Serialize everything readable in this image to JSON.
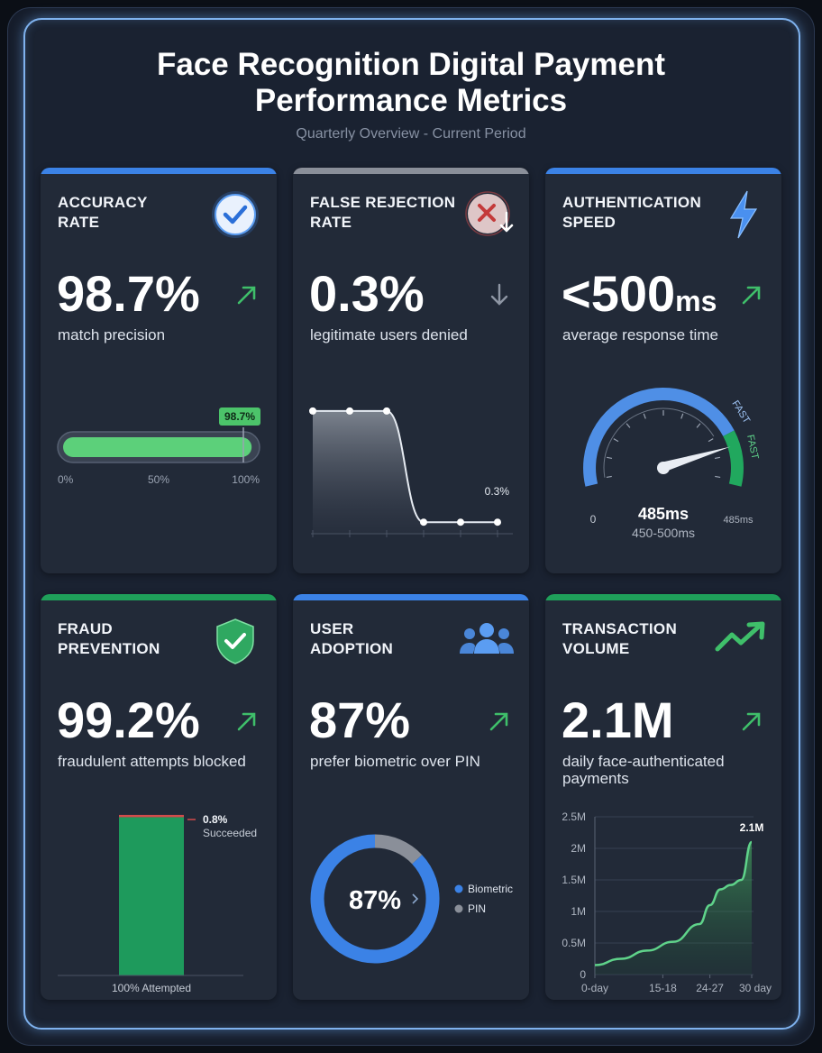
{
  "header": {
    "title_line1": "Face Recognition Digital Payment",
    "title_line2": "Performance Metrics",
    "subtitle": "Quarterly Overview - Current Period"
  },
  "colors": {
    "blue": "#3b82e6",
    "gray": "#8a8f99",
    "green": "#1fa05a",
    "bright_green": "#4cc46a",
    "red": "#d24b4b"
  },
  "cards": {
    "accuracy": {
      "label_line1": "ACCURACY",
      "label_line2": "RATE",
      "value": "98.7%",
      "desc": "match precision",
      "icon": "check-circle-icon",
      "trend": "up",
      "bar": {
        "value": 98.7,
        "badge": "98.7%",
        "tick_min": "0%",
        "tick_mid": "50%",
        "tick_max": "100%"
      }
    },
    "false_rejection": {
      "label_line1": "FALSE REJECTION",
      "label_line2": "RATE",
      "value": "0.3%",
      "desc": "legitimate users denied",
      "icon": "x-circle-down-icon",
      "trend": "down",
      "end_label": "0.3%"
    },
    "auth_speed": {
      "label_line1": "AUTHENTICATION",
      "label_line2": "SPEED",
      "value_main": "<500",
      "value_unit": "ms",
      "desc": "average response time",
      "icon": "lightning-icon",
      "trend": "up",
      "gauge": {
        "reading": "485ms",
        "range": "450-500ms",
        "min_label": "0",
        "max_label": "485ms",
        "fast1": "FAST",
        "fast2": "FAST",
        "needle_fraction": 0.85
      }
    },
    "fraud": {
      "label_line1": "FRAUD",
      "label_line2": "PREVENTION",
      "value": "99.2%",
      "desc": "fraudulent attempts blocked",
      "icon": "shield-check-icon",
      "trend": "up",
      "succeeded_pct": "0.8%",
      "succeeded_label": "Succeeded",
      "attempted_label": "100% Attempted"
    },
    "adoption": {
      "label_line1": "USER",
      "label_line2": "ADOPTION",
      "value": "87%",
      "desc": "prefer biometric over PIN",
      "icon": "users-icon",
      "trend": "up",
      "donut_label": "87%",
      "legend_biometric": "Biometric",
      "legend_pin": "PIN"
    },
    "volume": {
      "label_line1": "TRANSACTION",
      "label_line2": "VOLUME",
      "value": "2.1M",
      "desc": "daily face-authenticated payments",
      "icon": "trend-up-icon",
      "trend": "up",
      "end_label": "2.1M"
    }
  },
  "chart_data": [
    {
      "type": "bar",
      "title": "ACCURACY RATE",
      "categories": [
        "Accuracy"
      ],
      "values": [
        98.7
      ],
      "xlim": [
        0,
        100
      ],
      "tick_labels": [
        "0%",
        "50%",
        "100%"
      ]
    },
    {
      "type": "line",
      "title": "FALSE REJECTION RATE",
      "x": [
        0,
        1,
        2,
        3,
        4,
        5
      ],
      "values": [
        2.8,
        2.8,
        2.8,
        0.3,
        0.3,
        0.3
      ],
      "ylim": [
        0,
        3
      ],
      "annotations": [
        "0.3%"
      ]
    },
    {
      "type": "bar",
      "title": "FRAUD PREVENTION",
      "categories": [
        "Attempted"
      ],
      "series": [
        {
          "name": "Blocked",
          "values": [
            99.2
          ]
        },
        {
          "name": "Succeeded",
          "values": [
            0.8
          ]
        }
      ],
      "xlabel": "100% Attempted",
      "ylim": [
        0,
        100
      ]
    },
    {
      "type": "pie",
      "title": "USER ADOPTION",
      "categories": [
        "Biometric",
        "PIN"
      ],
      "values": [
        87,
        13
      ]
    },
    {
      "type": "area",
      "title": "TRANSACTION VOLUME",
      "x_ticks": [
        "0-day",
        "15-18",
        "24-27",
        "30 day"
      ],
      "y_ticks": [
        "0",
        "0.5M",
        "1M",
        "1.5M",
        "2M",
        "2.5M"
      ],
      "x": [
        0,
        5,
        10,
        15,
        20,
        22,
        24,
        26,
        28,
        30
      ],
      "values": [
        0.15,
        0.25,
        0.38,
        0.52,
        0.8,
        1.1,
        1.35,
        1.42,
        1.5,
        2.1
      ],
      "ylim": [
        0,
        2.5
      ],
      "annotations": [
        "2.1M"
      ]
    }
  ]
}
